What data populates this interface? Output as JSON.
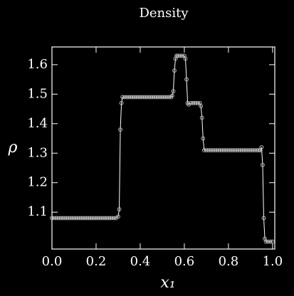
{
  "chart_data": {
    "type": "line",
    "title": "Density",
    "x_label": "x₁",
    "y_label": "ρ",
    "x": [
      0.0,
      0.01,
      0.02,
      0.03,
      0.04,
      0.05,
      0.06,
      0.07,
      0.08,
      0.09,
      0.1,
      0.11,
      0.12,
      0.13,
      0.14,
      0.15,
      0.16,
      0.17,
      0.18,
      0.19,
      0.2,
      0.21,
      0.22,
      0.23,
      0.24,
      0.25,
      0.26,
      0.27,
      0.28,
      0.29,
      0.3,
      0.305,
      0.31,
      0.315,
      0.32,
      0.33,
      0.34,
      0.35,
      0.36,
      0.37,
      0.38,
      0.39,
      0.4,
      0.41,
      0.42,
      0.43,
      0.44,
      0.45,
      0.46,
      0.47,
      0.48,
      0.49,
      0.5,
      0.51,
      0.52,
      0.53,
      0.54,
      0.545,
      0.55,
      0.555,
      0.56,
      0.565,
      0.57,
      0.58,
      0.59,
      0.6,
      0.605,
      0.61,
      0.615,
      0.62,
      0.63,
      0.64,
      0.65,
      0.66,
      0.67,
      0.675,
      0.68,
      0.685,
      0.69,
      0.7,
      0.71,
      0.72,
      0.73,
      0.74,
      0.75,
      0.76,
      0.77,
      0.78,
      0.79,
      0.8,
      0.81,
      0.82,
      0.83,
      0.84,
      0.85,
      0.86,
      0.87,
      0.88,
      0.89,
      0.9,
      0.91,
      0.92,
      0.93,
      0.94,
      0.945,
      0.95,
      0.955,
      0.96,
      0.965,
      0.97,
      0.98,
      0.99,
      1.0
    ],
    "series": [
      {
        "color": "#ffffff",
        "marker_color": "#bbbbbb",
        "values": [
          1.08,
          1.08,
          1.08,
          1.08,
          1.08,
          1.08,
          1.08,
          1.08,
          1.08,
          1.08,
          1.08,
          1.08,
          1.08,
          1.08,
          1.08,
          1.08,
          1.08,
          1.08,
          1.08,
          1.08,
          1.08,
          1.08,
          1.08,
          1.08,
          1.08,
          1.08,
          1.08,
          1.08,
          1.08,
          1.08,
          1.085,
          1.11,
          1.38,
          1.47,
          1.49,
          1.49,
          1.49,
          1.49,
          1.49,
          1.49,
          1.49,
          1.49,
          1.49,
          1.49,
          1.49,
          1.49,
          1.49,
          1.49,
          1.49,
          1.49,
          1.49,
          1.49,
          1.49,
          1.49,
          1.49,
          1.49,
          1.49,
          1.495,
          1.51,
          1.58,
          1.62,
          1.63,
          1.63,
          1.63,
          1.63,
          1.63,
          1.62,
          1.55,
          1.47,
          1.465,
          1.47,
          1.47,
          1.47,
          1.47,
          1.47,
          1.46,
          1.42,
          1.35,
          1.31,
          1.31,
          1.31,
          1.31,
          1.31,
          1.31,
          1.31,
          1.31,
          1.31,
          1.31,
          1.31,
          1.31,
          1.31,
          1.31,
          1.31,
          1.31,
          1.31,
          1.31,
          1.31,
          1.31,
          1.31,
          1.31,
          1.31,
          1.31,
          1.31,
          1.31,
          1.31,
          1.32,
          1.26,
          1.08,
          1.01,
          1.0,
          1.0,
          1.0,
          1.0
        ]
      }
    ],
    "xlim": [
      0,
      1.01
    ],
    "ylim": [
      0.975,
      1.66
    ],
    "xticks": [
      {
        "value": 0,
        "label": "0.0"
      },
      0.2,
      0.4,
      0.6,
      0.8,
      {
        "value": 1,
        "label": "1.0"
      }
    ],
    "yticks": [
      1.1,
      1.2,
      1.3,
      1.4,
      1.5,
      1.6
    ]
  }
}
